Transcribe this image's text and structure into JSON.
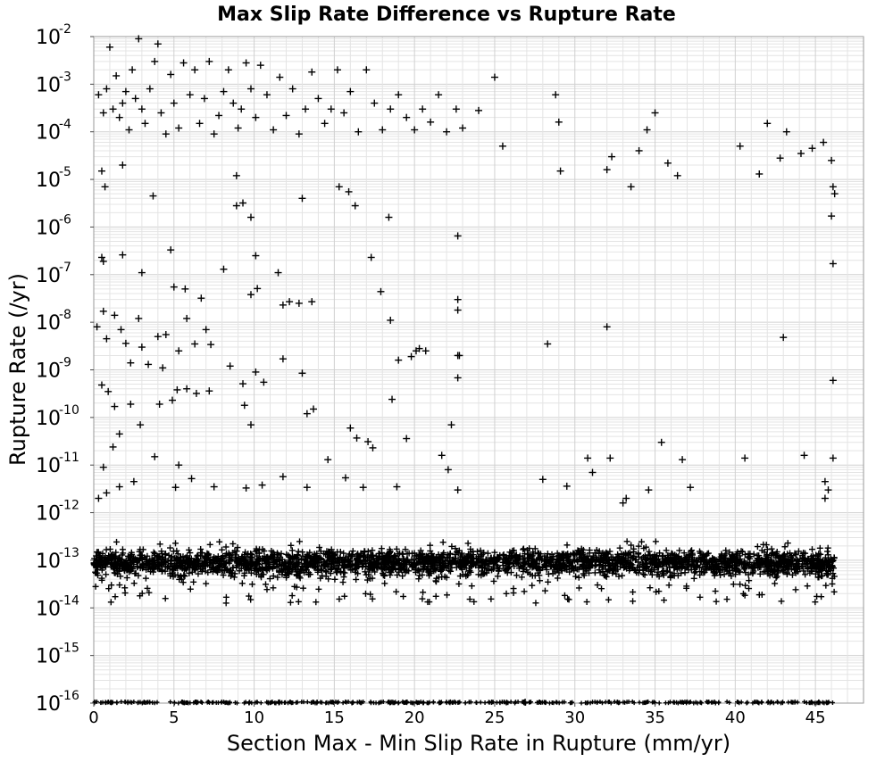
{
  "chart_data": {
    "type": "scatter",
    "title": "Max Slip Rate Difference vs Rupture Rate",
    "xlabel": "Section Max - Min Slip Rate in Rupture (mm/yr)",
    "ylabel": "Rupture Rate (/yr)",
    "xlim": [
      0,
      48
    ],
    "ylim": [
      1e-16,
      0.01
    ],
    "y_scale": "log",
    "grid": true,
    "marker": "+",
    "marker_color": "#000000",
    "x_ticks": [
      "0",
      "5",
      "10",
      "15",
      "20",
      "25",
      "30",
      "35",
      "40",
      "45"
    ],
    "y_ticks": [
      {
        "base": "10",
        "exp": "-2"
      },
      {
        "base": "10",
        "exp": "-3"
      },
      {
        "base": "10",
        "exp": "-4"
      },
      {
        "base": "10",
        "exp": "-5"
      },
      {
        "base": "10",
        "exp": "-6"
      },
      {
        "base": "10",
        "exp": "-7"
      },
      {
        "base": "10",
        "exp": "-8"
      },
      {
        "base": "10",
        "exp": "-9"
      },
      {
        "base": "10",
        "exp": "-10"
      },
      {
        "base": "10",
        "exp": "-11"
      },
      {
        "base": "10",
        "exp": "-12"
      },
      {
        "base": "10",
        "exp": "-13"
      },
      {
        "base": "10",
        "exp": "-14"
      },
      {
        "base": "10",
        "exp": "-15"
      },
      {
        "base": "10",
        "exp": "-16"
      }
    ],
    "points": [
      [
        0.3,
        0.0006
      ],
      [
        0.6,
        0.00025
      ],
      [
        0.8,
        0.0008
      ],
      [
        1.0,
        0.006
      ],
      [
        1.2,
        0.0003
      ],
      [
        1.4,
        0.0015
      ],
      [
        1.6,
        0.0002
      ],
      [
        1.8,
        0.0004
      ],
      [
        2.0,
        0.0007
      ],
      [
        2.2,
        0.00011
      ],
      [
        2.4,
        0.002
      ],
      [
        2.6,
        0.0005
      ],
      [
        2.8,
        0.009
      ],
      [
        3.0,
        0.0003
      ],
      [
        3.2,
        0.00015
      ],
      [
        3.5,
        0.0008
      ],
      [
        3.8,
        0.003
      ],
      [
        4.0,
        0.007
      ],
      [
        4.2,
        0.00025
      ],
      [
        4.5,
        9e-05
      ],
      [
        4.8,
        0.0016
      ],
      [
        5.0,
        0.0004
      ],
      [
        5.3,
        0.00012
      ],
      [
        5.6,
        0.0028
      ],
      [
        6.0,
        0.0006
      ],
      [
        6.3,
        0.002
      ],
      [
        6.6,
        0.00015
      ],
      [
        6.9,
        0.0005
      ],
      [
        7.2,
        0.003
      ],
      [
        7.5,
        9e-05
      ],
      [
        7.8,
        0.00022
      ],
      [
        8.1,
        0.0007
      ],
      [
        8.4,
        0.002
      ],
      [
        8.7,
        0.0004
      ],
      [
        9.0,
        0.00012
      ],
      [
        9.2,
        0.0003
      ],
      [
        9.5,
        0.0028
      ],
      [
        9.8,
        0.0008
      ],
      [
        10.1,
        0.0002
      ],
      [
        10.4,
        0.0025
      ],
      [
        10.8,
        0.0006
      ],
      [
        11.2,
        0.00011
      ],
      [
        11.6,
        0.0014
      ],
      [
        12.0,
        0.00022
      ],
      [
        12.4,
        0.0008
      ],
      [
        12.8,
        9e-05
      ],
      [
        13.2,
        0.0003
      ],
      [
        13.6,
        0.0018
      ],
      [
        14.0,
        0.0005
      ],
      [
        14.4,
        0.00015
      ],
      [
        14.8,
        0.0003
      ],
      [
        15.2,
        0.002
      ],
      [
        15.6,
        0.00025
      ],
      [
        16.0,
        0.0007
      ],
      [
        16.5,
        0.0001
      ],
      [
        17.0,
        0.002
      ],
      [
        17.5,
        0.0004
      ],
      [
        18.0,
        0.00011
      ],
      [
        18.5,
        0.0003
      ],
      [
        19.0,
        0.0006
      ],
      [
        19.5,
        0.0002
      ],
      [
        20.0,
        0.00011
      ],
      [
        20.5,
        0.0003
      ],
      [
        21.0,
        0.00016
      ],
      [
        21.5,
        0.0006
      ],
      [
        22.0,
        0.0001
      ],
      [
        22.6,
        0.0003
      ],
      [
        23.0,
        0.00012
      ],
      [
        24.0,
        0.00028
      ],
      [
        25.0,
        0.0014
      ],
      [
        25.5,
        5e-05
      ],
      [
        28.8,
        0.0006
      ],
      [
        29.0,
        0.00016
      ],
      [
        29.1,
        1.5e-05
      ],
      [
        32.0,
        1.6e-05
      ],
      [
        32.3,
        3e-05
      ],
      [
        33.5,
        7e-06
      ],
      [
        34.0,
        4e-05
      ],
      [
        34.5,
        0.00011
      ],
      [
        35.0,
        0.00025
      ],
      [
        35.8,
        2.2e-05
      ],
      [
        36.4,
        1.2e-05
      ],
      [
        40.3,
        5e-05
      ],
      [
        41.5,
        1.3e-05
      ],
      [
        42.0,
        0.00015
      ],
      [
        42.8,
        2.8e-05
      ],
      [
        43.2,
        0.0001
      ],
      [
        44.1,
        3.5e-05
      ],
      [
        44.8,
        4.5e-05
      ],
      [
        45.5,
        6e-05
      ],
      [
        46.0,
        2.5e-05
      ],
      [
        46.1,
        7e-06
      ],
      [
        46.2,
        5e-06
      ],
      [
        0.5,
        1.5e-05
      ],
      [
        0.7,
        7e-06
      ],
      [
        1.8,
        2e-05
      ],
      [
        3.7,
        4.5e-06
      ],
      [
        8.9,
        2.8e-06
      ],
      [
        9.3,
        3.2e-06
      ],
      [
        9.8,
        1.6e-06
      ],
      [
        8.9,
        1.2e-05
      ],
      [
        13.0,
        4e-06
      ],
      [
        15.3,
        7e-06
      ],
      [
        15.9,
        5.5e-06
      ],
      [
        16.3,
        2.8e-06
      ],
      [
        18.4,
        1.6e-06
      ],
      [
        22.7,
        6.5e-07
      ],
      [
        46.0,
        1.7e-06
      ],
      [
        46.1,
        1.7e-07
      ],
      [
        0.5,
        2.3e-07
      ],
      [
        0.6,
        1.9e-07
      ],
      [
        1.8,
        2.6e-07
      ],
      [
        3.0,
        1.1e-07
      ],
      [
        4.8,
        3.3e-07
      ],
      [
        5.0,
        5.5e-08
      ],
      [
        5.7,
        5e-08
      ],
      [
        6.7,
        3.2e-08
      ],
      [
        8.1,
        1.3e-07
      ],
      [
        9.8,
        3.8e-08
      ],
      [
        10.2,
        5.1e-08
      ],
      [
        10.1,
        2.5e-07
      ],
      [
        11.5,
        1.1e-07
      ],
      [
        11.8,
        2.3e-08
      ],
      [
        12.2,
        2.7e-08
      ],
      [
        12.8,
        2.5e-08
      ],
      [
        13.6,
        2.7e-08
      ],
      [
        17.3,
        2.3e-07
      ],
      [
        17.9,
        4.4e-08
      ],
      [
        18.5,
        1.1e-08
      ],
      [
        22.7,
        3e-08
      ],
      [
        22.7,
        1.8e-08
      ],
      [
        26.9,
        0
      ],
      [
        28.3,
        3.5e-09
      ],
      [
        32.0,
        8e-09
      ],
      [
        43.0,
        4.8e-09
      ],
      [
        0.2,
        8e-09
      ],
      [
        0.6,
        1.7e-08
      ],
      [
        0.8,
        4.5e-09
      ],
      [
        1.3,
        1.4e-08
      ],
      [
        1.7,
        7e-09
      ],
      [
        2.0,
        3.6e-09
      ],
      [
        2.3,
        1.4e-09
      ],
      [
        2.8,
        1.2e-08
      ],
      [
        3.0,
        3e-09
      ],
      [
        3.4,
        1.3e-09
      ],
      [
        4.0,
        5e-09
      ],
      [
        4.3,
        1.1e-09
      ],
      [
        4.5,
        5.5e-09
      ],
      [
        5.3,
        2.5e-09
      ],
      [
        5.8,
        1.2e-08
      ],
      [
        6.3,
        3.5e-09
      ],
      [
        7.0,
        7e-09
      ],
      [
        7.3,
        3.4e-09
      ],
      [
        8.5,
        1.2e-09
      ],
      [
        9.3,
        5.1e-10
      ],
      [
        10.1,
        9e-10
      ],
      [
        10.6,
        5.5e-10
      ],
      [
        11.8,
        1.7e-09
      ],
      [
        13.0,
        8.5e-10
      ],
      [
        19.0,
        1.6e-09
      ],
      [
        19.8,
        1.9e-09
      ],
      [
        20.3,
        2.8e-09
      ],
      [
        20.1,
        2.5e-09
      ],
      [
        20.7,
        2.5e-09
      ],
      [
        22.7,
        2e-09
      ],
      [
        22.8,
        2e-09
      ],
      [
        22.7,
        6.8e-10
      ],
      [
        18.6,
        2.4e-10
      ],
      [
        46.1,
        6e-10
      ],
      [
        0.5,
        4.8e-10
      ],
      [
        0.9,
        3.5e-10
      ],
      [
        1.3,
        1.7e-10
      ],
      [
        2.3,
        1.9e-10
      ],
      [
        2.9,
        7e-11
      ],
      [
        4.1,
        1.9e-10
      ],
      [
        4.9,
        2.3e-10
      ],
      [
        5.2,
        3.8e-10
      ],
      [
        5.8,
        4e-10
      ],
      [
        6.4,
        3.2e-10
      ],
      [
        7.2,
        3.6e-10
      ],
      [
        9.4,
        1.8e-10
      ],
      [
        9.8,
        7e-11
      ],
      [
        13.3,
        1.2e-10
      ],
      [
        13.7,
        1.5e-10
      ],
      [
        16.0,
        6e-11
      ],
      [
        16.4,
        3.7e-11
      ],
      [
        17.1,
        3.1e-11
      ],
      [
        17.4,
        2.3e-11
      ],
      [
        19.5,
        3.6e-11
      ],
      [
        21.7,
        1.6e-11
      ],
      [
        22.1,
        8e-12
      ],
      [
        22.3,
        7e-11
      ],
      [
        35.4,
        3e-11
      ],
      [
        1.2,
        2.4e-11
      ],
      [
        1.6,
        4.5e-11
      ],
      [
        0.6,
        9e-12
      ],
      [
        28.0,
        5e-12
      ],
      [
        30.8,
        1.4e-11
      ],
      [
        32.2,
        1.4e-11
      ],
      [
        34.6,
        3e-12
      ],
      [
        36.7,
        1.3e-11
      ],
      [
        40.6,
        1.4e-11
      ],
      [
        44.3,
        1.6e-11
      ],
      [
        46.1,
        1.4e-11
      ],
      [
        0.8,
        2.6e-12
      ],
      [
        1.6,
        3.5e-12
      ],
      [
        2.5,
        4.5e-12
      ],
      [
        3.8,
        1.5e-11
      ],
      [
        5.3,
        1e-11
      ],
      [
        5.1,
        3.4e-12
      ],
      [
        6.1,
        5.2e-12
      ],
      [
        7.5,
        3.5e-12
      ],
      [
        9.5,
        3.3e-12
      ],
      [
        10.5,
        3.8e-12
      ],
      [
        11.8,
        5.7e-12
      ],
      [
        13.3,
        3.4e-12
      ],
      [
        14.6,
        1.3e-11
      ],
      [
        15.7,
        5.4e-12
      ],
      [
        16.8,
        3.4e-12
      ],
      [
        18.9,
        3.5e-12
      ],
      [
        22.7,
        3e-12
      ],
      [
        29.5,
        3.6e-12
      ],
      [
        31.1,
        7e-12
      ],
      [
        33.0,
        1.6e-12
      ],
      [
        33.2,
        2e-12
      ],
      [
        37.2,
        3.4e-12
      ],
      [
        45.6,
        2e-12
      ],
      [
        45.6,
        4.5e-12
      ],
      [
        0.3,
        2e-12
      ],
      [
        45.8,
        3e-12
      ]
    ]
  }
}
